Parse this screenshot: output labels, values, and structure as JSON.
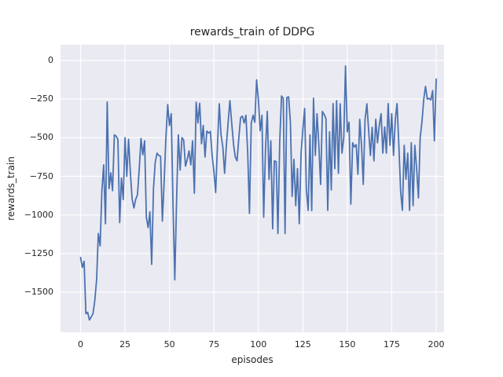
{
  "title": "rewards_train of DDPG",
  "chart_data": {
    "type": "line",
    "title": "rewards_train of DDPG",
    "xlabel": "episodes",
    "ylabel": "rewards_train",
    "legend": null,
    "grid": true,
    "style": "seaborn-darkgrid",
    "axes_background": "#eaeaf2",
    "grid_color": "#ffffff",
    "text_color": "#262626",
    "line_color": "#4c72b0",
    "xticks": [
      0,
      25,
      50,
      75,
      100,
      125,
      150,
      175,
      200
    ],
    "yticks": [
      0,
      -250,
      -500,
      -750,
      -1000,
      -1250,
      -1500
    ],
    "xlim": [
      -11.3,
      204.5
    ],
    "ylim": [
      -1759,
      101
    ],
    "x_range": [
      0,
      200
    ],
    "x_step": 1,
    "series": [
      {
        "name": "rewards_train",
        "values": [
          -1275,
          -1340,
          -1300,
          -1640,
          -1630,
          -1680,
          -1660,
          -1640,
          -1555,
          -1420,
          -1120,
          -1200,
          -850,
          -676,
          -1057,
          -269,
          -830,
          -727,
          -843,
          -482,
          -490,
          -510,
          -1050,
          -760,
          -900,
          -500,
          -750,
          -510,
          -730,
          -895,
          -955,
          -900,
          -870,
          -700,
          -505,
          -610,
          -520,
          -1015,
          -1082,
          -980,
          -1320,
          -828,
          -660,
          -600,
          -615,
          -620,
          -1040,
          -790,
          -500,
          -286,
          -421,
          -345,
          -950,
          -1420,
          -900,
          -481,
          -710,
          -500,
          -515,
          -684,
          -640,
          -585,
          -676,
          -520,
          -860,
          -270,
          -404,
          -277,
          -539,
          -421,
          -625,
          -457,
          -470,
          -460,
          -615,
          -720,
          -855,
          -550,
          -280,
          -480,
          -560,
          -730,
          -550,
          -400,
          -260,
          -404,
          -540,
          -625,
          -650,
          -500,
          -370,
          -360,
          -405,
          -355,
          -600,
          -990,
          -404,
          -355,
          -400,
          -125,
          -255,
          -455,
          -355,
          -1015,
          -575,
          -330,
          -770,
          -520,
          -1090,
          -650,
          -655,
          -1120,
          -530,
          -230,
          -245,
          -1120,
          -240,
          -235,
          -400,
          -880,
          -640,
          -940,
          -700,
          -1057,
          -600,
          -447,
          -310,
          -838,
          -970,
          -482,
          -972,
          -244,
          -615,
          -345,
          -549,
          -803,
          -330,
          -350,
          -376,
          -970,
          -462,
          -838,
          -279,
          -700,
          -260,
          -730,
          -280,
          -600,
          -500,
          -35,
          -462,
          -400,
          -930,
          -533,
          -560,
          -545,
          -737,
          -381,
          -550,
          -803,
          -381,
          -280,
          -450,
          -615,
          -432,
          -650,
          -381,
          -533,
          -420,
          -345,
          -600,
          -430,
          -600,
          -279,
          -549,
          -345,
          -615,
          -381,
          -279,
          -550,
          -850,
          -970,
          -549,
          -769,
          -600,
          -970,
          -533,
          -940,
          -549,
          -700,
          -890,
          -500,
          -396,
          -250,
          -168,
          -250,
          -245,
          -255,
          -195,
          -520,
          -120
        ]
      }
    ]
  }
}
